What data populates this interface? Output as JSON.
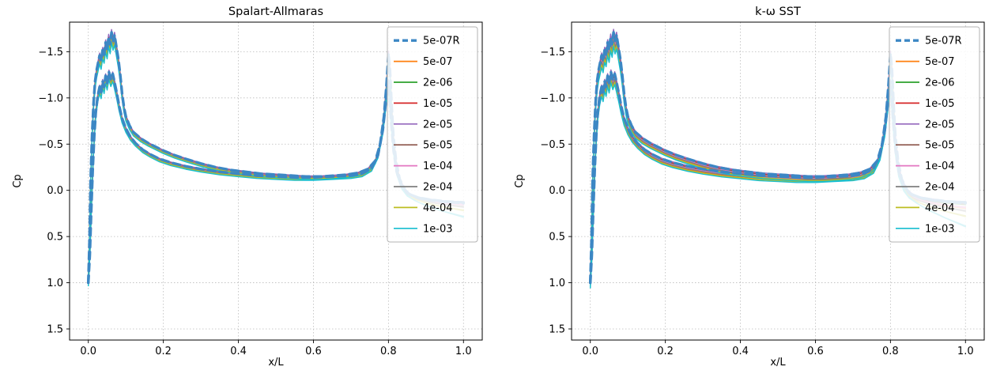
{
  "page": {
    "background": "#ffffff"
  },
  "chart_data": [
    {
      "type": "line",
      "title": "Spalart-Allmaras",
      "xlabel": "x/L",
      "ylabel": "Cp",
      "x_ticks": [
        0.0,
        0.2,
        0.4,
        0.6,
        0.8,
        1.0
      ],
      "y_ticks": [
        -1.5,
        -1.0,
        -0.5,
        0.0,
        0.5,
        1.0,
        1.5
      ],
      "xlim": [
        -0.05,
        1.05
      ],
      "ylim_top": -1.82,
      "ylim_bottom": 1.62,
      "y_axis_inverted": true,
      "grid": "dotted",
      "grid_color": "#bbbbbb",
      "legend_position": "upper right",
      "branches": {
        "upper": [
          [
            0.0,
            1.0
          ],
          [
            0.003,
            0.55
          ],
          [
            0.006,
            -0.1
          ],
          [
            0.01,
            -0.6
          ],
          [
            0.014,
            -0.95
          ],
          [
            0.018,
            -1.18
          ],
          [
            0.022,
            -1.3
          ],
          [
            0.026,
            -1.38
          ],
          [
            0.03,
            -1.46
          ],
          [
            0.034,
            -1.4
          ],
          [
            0.038,
            -1.52
          ],
          [
            0.042,
            -1.47
          ],
          [
            0.046,
            -1.6
          ],
          [
            0.05,
            -1.52
          ],
          [
            0.054,
            -1.66
          ],
          [
            0.058,
            -1.58
          ],
          [
            0.062,
            -1.71
          ],
          [
            0.066,
            -1.62
          ],
          [
            0.07,
            -1.68
          ],
          [
            0.075,
            -1.55
          ],
          [
            0.08,
            -1.42
          ],
          [
            0.085,
            -1.25
          ],
          [
            0.09,
            -1.05
          ],
          [
            0.095,
            -0.9
          ],
          [
            0.1,
            -0.8
          ],
          [
            0.11,
            -0.7
          ],
          [
            0.12,
            -0.63
          ],
          [
            0.14,
            -0.56
          ],
          [
            0.16,
            -0.51
          ],
          [
            0.18,
            -0.47
          ],
          [
            0.2,
            -0.43
          ],
          [
            0.23,
            -0.38
          ],
          [
            0.26,
            -0.34
          ],
          [
            0.3,
            -0.29
          ],
          [
            0.34,
            -0.25
          ],
          [
            0.38,
            -0.22
          ],
          [
            0.42,
            -0.2
          ],
          [
            0.46,
            -0.18
          ],
          [
            0.5,
            -0.17
          ],
          [
            0.54,
            -0.16
          ],
          [
            0.58,
            -0.15
          ],
          [
            0.62,
            -0.15
          ],
          [
            0.66,
            -0.16
          ],
          [
            0.69,
            -0.17
          ],
          [
            0.72,
            -0.19
          ],
          [
            0.745,
            -0.23
          ],
          [
            0.765,
            -0.32
          ],
          [
            0.778,
            -0.5
          ],
          [
            0.788,
            -0.8
          ],
          [
            0.795,
            -1.15
          ],
          [
            0.8,
            -1.48
          ],
          [
            0.804,
            -1.3
          ],
          [
            0.808,
            -0.95
          ],
          [
            0.813,
            -0.6
          ],
          [
            0.82,
            -0.32
          ],
          [
            0.83,
            -0.12
          ],
          [
            0.845,
            0.0
          ],
          [
            0.86,
            0.05
          ],
          [
            0.88,
            0.08
          ],
          [
            0.91,
            0.1
          ],
          [
            0.95,
            0.12
          ],
          [
            1.0,
            0.13
          ]
        ],
        "lower": [
          [
            0.0,
            1.0
          ],
          [
            0.004,
            0.7
          ],
          [
            0.008,
            0.2
          ],
          [
            0.012,
            -0.25
          ],
          [
            0.016,
            -0.6
          ],
          [
            0.02,
            -0.85
          ],
          [
            0.025,
            -1.02
          ],
          [
            0.03,
            -1.12
          ],
          [
            0.034,
            -1.06
          ],
          [
            0.038,
            -1.18
          ],
          [
            0.042,
            -1.12
          ],
          [
            0.046,
            -1.24
          ],
          [
            0.05,
            -1.16
          ],
          [
            0.055,
            -1.28
          ],
          [
            0.06,
            -1.2
          ],
          [
            0.065,
            -1.26
          ],
          [
            0.07,
            -1.17
          ],
          [
            0.076,
            -1.05
          ],
          [
            0.082,
            -0.92
          ],
          [
            0.09,
            -0.78
          ],
          [
            0.1,
            -0.67
          ],
          [
            0.112,
            -0.58
          ],
          [
            0.126,
            -0.51
          ],
          [
            0.145,
            -0.44
          ],
          [
            0.165,
            -0.39
          ],
          [
            0.19,
            -0.34
          ],
          [
            0.22,
            -0.3
          ],
          [
            0.26,
            -0.26
          ],
          [
            0.3,
            -0.23
          ],
          [
            0.35,
            -0.2
          ],
          [
            0.4,
            -0.18
          ],
          [
            0.45,
            -0.16
          ],
          [
            0.5,
            -0.15
          ],
          [
            0.55,
            -0.14
          ],
          [
            0.6,
            -0.14
          ],
          [
            0.65,
            -0.15
          ],
          [
            0.7,
            -0.16
          ],
          [
            0.73,
            -0.18
          ],
          [
            0.755,
            -0.24
          ],
          [
            0.772,
            -0.38
          ],
          [
            0.785,
            -0.65
          ],
          [
            0.793,
            -0.95
          ],
          [
            0.799,
            -1.18
          ],
          [
            0.803,
            -1.0
          ],
          [
            0.808,
            -0.7
          ],
          [
            0.814,
            -0.42
          ],
          [
            0.822,
            -0.2
          ],
          [
            0.835,
            -0.05
          ],
          [
            0.85,
            0.03
          ],
          [
            0.87,
            0.07
          ],
          [
            0.9,
            0.1
          ],
          [
            0.94,
            0.12
          ],
          [
            1.0,
            0.14
          ]
        ]
      },
      "series": [
        {
          "name": "5e-07R",
          "color": "#3c87c4",
          "width": 3.4,
          "dash": [
            9,
            6
          ],
          "dy": 0.0,
          "peak_scale": 1.0,
          "tail_dy": 0.0
        },
        {
          "name": "5e-07",
          "color": "#ff7f0e",
          "width": 1.4,
          "dash": null,
          "dy": 0.012,
          "peak_scale": 0.965,
          "tail_dy": 0.0
        },
        {
          "name": "2e-06",
          "color": "#2ca02c",
          "width": 1.4,
          "dash": null,
          "dy": 0.006,
          "peak_scale": 0.985,
          "tail_dy": 0.0
        },
        {
          "name": "1e-05",
          "color": "#d62728",
          "width": 1.4,
          "dash": null,
          "dy": 0.0,
          "peak_scale": 1.005,
          "tail_dy": 0.0
        },
        {
          "name": "2e-05",
          "color": "#9467bd",
          "width": 1.4,
          "dash": null,
          "dy": -0.006,
          "peak_scale": 1.02,
          "tail_dy": 0.0
        },
        {
          "name": "5e-05",
          "color": "#8c564b",
          "width": 1.4,
          "dash": null,
          "dy": 0.004,
          "peak_scale": 0.995,
          "tail_dy": 0.0
        },
        {
          "name": "1e-04",
          "color": "#e377c2",
          "width": 1.4,
          "dash": null,
          "dy": 0.009,
          "peak_scale": 0.98,
          "tail_dy": 0.01
        },
        {
          "name": "2e-04",
          "color": "#7f7f7f",
          "width": 1.4,
          "dash": null,
          "dy": 0.014,
          "peak_scale": 0.97,
          "tail_dy": 0.03
        },
        {
          "name": "4e-04",
          "color": "#bcbd22",
          "width": 1.4,
          "dash": null,
          "dy": 0.022,
          "peak_scale": 0.955,
          "tail_dy": 0.06
        },
        {
          "name": "1e-03",
          "color": "#17becf",
          "width": 1.4,
          "dash": null,
          "dy": 0.032,
          "peak_scale": 0.935,
          "tail_dy": 0.12
        }
      ]
    },
    {
      "type": "line",
      "title": "k-ω SST",
      "xlabel": "x/L",
      "ylabel": "Cp",
      "x_ticks": [
        0.0,
        0.2,
        0.4,
        0.6,
        0.8,
        1.0
      ],
      "y_ticks": [
        -1.5,
        -1.0,
        -0.5,
        0.0,
        0.5,
        1.0,
        1.5
      ],
      "xlim": [
        -0.05,
        1.05
      ],
      "ylim_top": -1.82,
      "ylim_bottom": 1.62,
      "y_axis_inverted": true,
      "grid": "dotted",
      "grid_color": "#bbbbbb",
      "legend_position": "upper right",
      "branches": {
        "upper": [
          [
            0.0,
            1.0
          ],
          [
            0.003,
            0.55
          ],
          [
            0.006,
            -0.1
          ],
          [
            0.01,
            -0.6
          ],
          [
            0.014,
            -0.95
          ],
          [
            0.018,
            -1.18
          ],
          [
            0.022,
            -1.3
          ],
          [
            0.026,
            -1.38
          ],
          [
            0.03,
            -1.46
          ],
          [
            0.034,
            -1.4
          ],
          [
            0.038,
            -1.52
          ],
          [
            0.042,
            -1.47
          ],
          [
            0.046,
            -1.6
          ],
          [
            0.05,
            -1.52
          ],
          [
            0.054,
            -1.66
          ],
          [
            0.058,
            -1.58
          ],
          [
            0.062,
            -1.71
          ],
          [
            0.066,
            -1.62
          ],
          [
            0.07,
            -1.68
          ],
          [
            0.075,
            -1.55
          ],
          [
            0.08,
            -1.42
          ],
          [
            0.085,
            -1.25
          ],
          [
            0.09,
            -1.05
          ],
          [
            0.095,
            -0.9
          ],
          [
            0.1,
            -0.8
          ],
          [
            0.11,
            -0.7
          ],
          [
            0.12,
            -0.63
          ],
          [
            0.14,
            -0.56
          ],
          [
            0.16,
            -0.51
          ],
          [
            0.18,
            -0.47
          ],
          [
            0.2,
            -0.43
          ],
          [
            0.23,
            -0.38
          ],
          [
            0.26,
            -0.34
          ],
          [
            0.3,
            -0.29
          ],
          [
            0.34,
            -0.25
          ],
          [
            0.38,
            -0.22
          ],
          [
            0.42,
            -0.2
          ],
          [
            0.46,
            -0.18
          ],
          [
            0.5,
            -0.17
          ],
          [
            0.54,
            -0.16
          ],
          [
            0.58,
            -0.15
          ],
          [
            0.62,
            -0.15
          ],
          [
            0.66,
            -0.16
          ],
          [
            0.69,
            -0.17
          ],
          [
            0.72,
            -0.19
          ],
          [
            0.745,
            -0.23
          ],
          [
            0.765,
            -0.32
          ],
          [
            0.778,
            -0.5
          ],
          [
            0.788,
            -0.8
          ],
          [
            0.795,
            -1.15
          ],
          [
            0.8,
            -1.48
          ],
          [
            0.804,
            -1.3
          ],
          [
            0.808,
            -0.95
          ],
          [
            0.813,
            -0.6
          ],
          [
            0.82,
            -0.32
          ],
          [
            0.83,
            -0.12
          ],
          [
            0.845,
            0.0
          ],
          [
            0.86,
            0.05
          ],
          [
            0.88,
            0.08
          ],
          [
            0.91,
            0.1
          ],
          [
            0.95,
            0.12
          ],
          [
            1.0,
            0.13
          ]
        ],
        "lower": [
          [
            0.0,
            1.0
          ],
          [
            0.004,
            0.7
          ],
          [
            0.008,
            0.2
          ],
          [
            0.012,
            -0.25
          ],
          [
            0.016,
            -0.6
          ],
          [
            0.02,
            -0.85
          ],
          [
            0.025,
            -1.02
          ],
          [
            0.03,
            -1.12
          ],
          [
            0.034,
            -1.06
          ],
          [
            0.038,
            -1.18
          ],
          [
            0.042,
            -1.12
          ],
          [
            0.046,
            -1.24
          ],
          [
            0.05,
            -1.16
          ],
          [
            0.055,
            -1.28
          ],
          [
            0.06,
            -1.2
          ],
          [
            0.065,
            -1.26
          ],
          [
            0.07,
            -1.17
          ],
          [
            0.076,
            -1.05
          ],
          [
            0.082,
            -0.92
          ],
          [
            0.09,
            -0.78
          ],
          [
            0.1,
            -0.67
          ],
          [
            0.112,
            -0.58
          ],
          [
            0.126,
            -0.51
          ],
          [
            0.145,
            -0.44
          ],
          [
            0.165,
            -0.39
          ],
          [
            0.19,
            -0.34
          ],
          [
            0.22,
            -0.3
          ],
          [
            0.26,
            -0.26
          ],
          [
            0.3,
            -0.23
          ],
          [
            0.35,
            -0.2
          ],
          [
            0.4,
            -0.18
          ],
          [
            0.45,
            -0.16
          ],
          [
            0.5,
            -0.15
          ],
          [
            0.55,
            -0.14
          ],
          [
            0.6,
            -0.14
          ],
          [
            0.65,
            -0.15
          ],
          [
            0.7,
            -0.16
          ],
          [
            0.73,
            -0.18
          ],
          [
            0.755,
            -0.24
          ],
          [
            0.772,
            -0.38
          ],
          [
            0.785,
            -0.65
          ],
          [
            0.793,
            -0.95
          ],
          [
            0.799,
            -1.18
          ],
          [
            0.803,
            -1.0
          ],
          [
            0.808,
            -0.7
          ],
          [
            0.814,
            -0.42
          ],
          [
            0.822,
            -0.2
          ],
          [
            0.835,
            -0.05
          ],
          [
            0.85,
            0.03
          ],
          [
            0.87,
            0.07
          ],
          [
            0.9,
            0.1
          ],
          [
            0.94,
            0.12
          ],
          [
            1.0,
            0.14
          ]
        ]
      },
      "series": [
        {
          "name": "5e-07R",
          "color": "#3c87c4",
          "width": 3.4,
          "dash": [
            9,
            6
          ],
          "dy": 0.0,
          "peak_scale": 1.0,
          "tail_dy": 0.0
        },
        {
          "name": "5e-07",
          "color": "#ff7f0e",
          "width": 1.4,
          "dash": null,
          "dy": 0.035,
          "peak_scale": 0.95,
          "tail_dy": 0.02
        },
        {
          "name": "2e-06",
          "color": "#2ca02c",
          "width": 1.4,
          "dash": null,
          "dy": 0.015,
          "peak_scale": 0.98,
          "tail_dy": 0.0
        },
        {
          "name": "1e-05",
          "color": "#d62728",
          "width": 1.4,
          "dash": null,
          "dy": 0.005,
          "peak_scale": 1.005,
          "tail_dy": 0.0
        },
        {
          "name": "2e-05",
          "color": "#9467bd",
          "width": 1.4,
          "dash": null,
          "dy": -0.008,
          "peak_scale": 1.02,
          "tail_dy": 0.0
        },
        {
          "name": "5e-05",
          "color": "#8c564b",
          "width": 1.4,
          "dash": null,
          "dy": 0.01,
          "peak_scale": 0.99,
          "tail_dy": 0.0
        },
        {
          "name": "1e-04",
          "color": "#e377c2",
          "width": 1.4,
          "dash": null,
          "dy": 0.02,
          "peak_scale": 0.97,
          "tail_dy": 0.03
        },
        {
          "name": "2e-04",
          "color": "#7f7f7f",
          "width": 1.4,
          "dash": null,
          "dy": 0.028,
          "peak_scale": 0.96,
          "tail_dy": 0.06
        },
        {
          "name": "4e-04",
          "color": "#bcbd22",
          "width": 1.4,
          "dash": null,
          "dy": 0.045,
          "peak_scale": 0.94,
          "tail_dy": 0.1
        },
        {
          "name": "1e-03",
          "color": "#17becf",
          "width": 1.4,
          "dash": null,
          "dy": 0.055,
          "peak_scale": 0.92,
          "tail_dy": 0.2
        }
      ]
    }
  ]
}
